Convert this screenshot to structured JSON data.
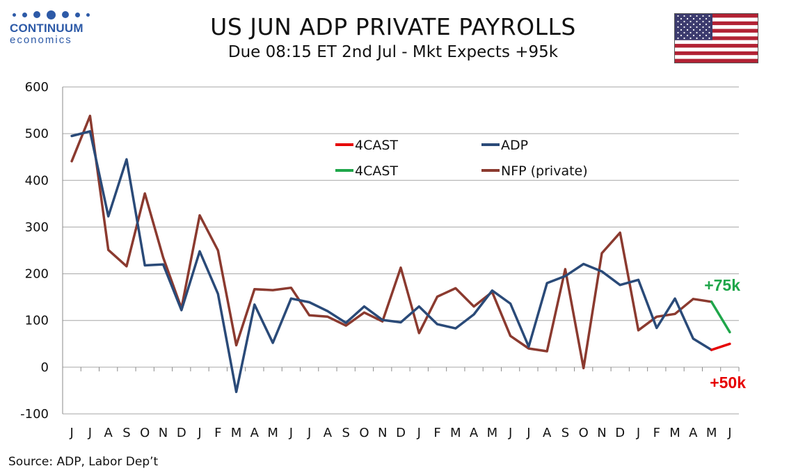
{
  "logo": {
    "name": "CONTINUUM",
    "sub": "economics"
  },
  "header": {
    "title": "US JUN ADP PRIVATE PAYROLLS",
    "subtitle": "Due 08:15 ET 2nd Jul - Mkt Expects +95k"
  },
  "flag_icon": "us-flag-icon",
  "source": "Source: ADP, Labor Dep’t",
  "colors": {
    "adp": "#2a4a78",
    "nfp": "#8b3a2f",
    "forecast_adp": "#e60000",
    "forecast_nfp": "#1fa64a",
    "grid": "#a6a6a6",
    "logo": "#2d5aa7"
  },
  "annotations": [
    {
      "text": "+75k",
      "color": "#1fa64a"
    },
    {
      "text": "+50k",
      "color": "#e60000"
    }
  ],
  "chart_data": {
    "type": "line",
    "title": "US JUN ADP PRIVATE PAYROLLS",
    "subtitle": "Due 08:15 ET 2nd Jul - Mkt Expects +95k",
    "xlabel": "",
    "ylabel": "",
    "ylim": [
      -100,
      600
    ],
    "yticks": [
      -100,
      0,
      100,
      200,
      300,
      400,
      500,
      600
    ],
    "grid": true,
    "legend_position": "top-center",
    "categories": [
      "J",
      "J",
      "A",
      "S",
      "O",
      "N",
      "D",
      "J",
      "F",
      "M",
      "A",
      "M",
      "J",
      "J",
      "A",
      "S",
      "O",
      "N",
      "D",
      "J",
      "F",
      "M",
      "A",
      "M",
      "J",
      "J",
      "A",
      "S",
      "O",
      "N",
      "D",
      "J",
      "F",
      "M",
      "A",
      "M",
      "J"
    ],
    "series": [
      {
        "name": "4CAST",
        "color": "#e60000",
        "values": [
          null,
          null,
          null,
          null,
          null,
          null,
          null,
          null,
          null,
          null,
          null,
          null,
          null,
          null,
          null,
          null,
          null,
          null,
          null,
          null,
          null,
          null,
          null,
          null,
          null,
          null,
          null,
          null,
          null,
          null,
          null,
          null,
          null,
          null,
          null,
          37,
          50
        ]
      },
      {
        "name": "ADP",
        "color": "#2a4a78",
        "values": [
          495,
          505,
          323,
          445,
          218,
          220,
          122,
          248,
          157,
          -53,
          134,
          52,
          147,
          139,
          120,
          95,
          130,
          101,
          96,
          130,
          92,
          83,
          113,
          164,
          136,
          44,
          180,
          195,
          221,
          205,
          176,
          187,
          84,
          147,
          61,
          37,
          null
        ]
      },
      {
        "name": "4CAST",
        "color": "#1fa64a",
        "values": [
          null,
          null,
          null,
          null,
          null,
          null,
          null,
          null,
          null,
          null,
          null,
          null,
          null,
          null,
          null,
          null,
          null,
          null,
          null,
          null,
          null,
          null,
          null,
          null,
          null,
          null,
          null,
          null,
          null,
          null,
          null,
          null,
          null,
          null,
          null,
          140,
          75
        ]
      },
      {
        "name": "NFP (private)",
        "color": "#8b3a2f",
        "values": [
          441,
          538,
          251,
          216,
          372,
          235,
          126,
          325,
          250,
          47,
          167,
          165,
          170,
          111,
          108,
          89,
          117,
          98,
          213,
          73,
          151,
          169,
          130,
          161,
          67,
          40,
          34,
          210,
          -2,
          244,
          288,
          79,
          108,
          114,
          146,
          140,
          null
        ]
      }
    ]
  }
}
